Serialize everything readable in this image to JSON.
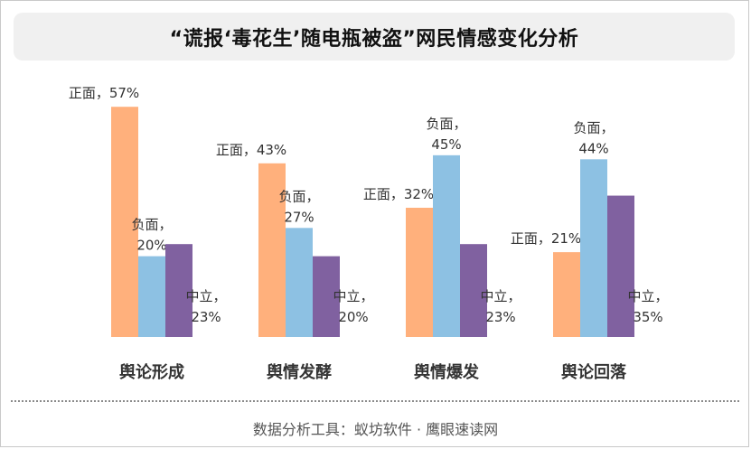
{
  "title": "“谎报‘毒花生’随电瓶被盗”网民情感变化分析",
  "footer": "数据分析工具：蚁坊软件 · 鹰眼速读网",
  "chart_data": {
    "type": "bar",
    "categories": [
      "舆论形成",
      "舆情发酵",
      "舆情爆发",
      "舆论回落"
    ],
    "series": [
      {
        "name": "正面",
        "color": "#FFB07C",
        "values": [
          57,
          43,
          32,
          21
        ]
      },
      {
        "name": "负面",
        "color": "#8DC1E3",
        "values": [
          20,
          27,
          45,
          44
        ]
      },
      {
        "name": "中立",
        "color": "#8061A0",
        "values": [
          23,
          20,
          23,
          35
        ]
      }
    ],
    "ylim": [
      0,
      57
    ],
    "grid": false,
    "legend": "none",
    "data_labels": [
      [
        "正面，57%",
        "负面，20%",
        "中立，23%"
      ],
      [
        "正面，43%",
        "负面，27%",
        "中立，20%"
      ],
      [
        "正面，32%",
        "负面，45%",
        "中立，23%"
      ],
      [
        "正面，21%",
        "负面，44%",
        "中立，35%"
      ]
    ]
  }
}
